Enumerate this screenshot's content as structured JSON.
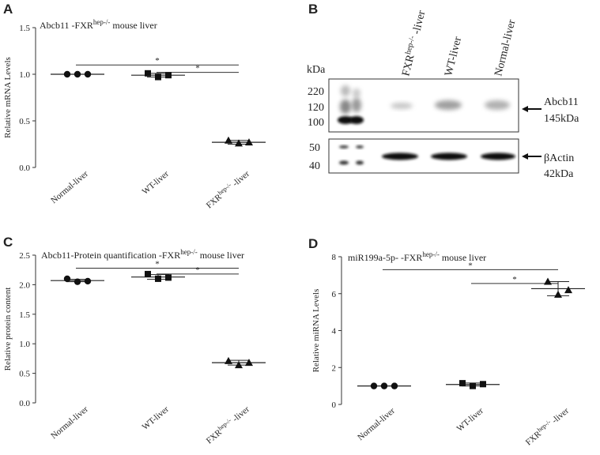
{
  "chart_data": [
    {
      "panel": "A",
      "type": "scatter",
      "title": "Abcb11 -FXR<sup>hep-/-</sup> mouse liver",
      "ylabel": "Relative mRNA Levels",
      "ylim": [
        0,
        1.5
      ],
      "yticks": [
        "0.0",
        "0.5",
        "1.0",
        "1.5"
      ],
      "categories": [
        "Normal-liver",
        "WT-liver",
        "FXR<sup>hep-/-</sup> -liver"
      ],
      "markers": [
        "circle",
        "square",
        "triangle"
      ],
      "values": [
        [
          1.0,
          1.0,
          1.0
        ],
        [
          1.01,
          0.97,
          0.99
        ],
        [
          0.29,
          0.26,
          0.27
        ]
      ],
      "means": [
        1.0,
        0.99,
        0.27
      ],
      "error": [
        0,
        0.02,
        0.02
      ],
      "significance": [
        {
          "from": 0,
          "to": 2,
          "y": 1.1,
          "label": "*"
        },
        {
          "from": 1,
          "to": 2,
          "y": 1.02,
          "label": "*"
        }
      ]
    },
    {
      "panel": "C",
      "type": "scatter",
      "title": "Abcb11-Protein quantification -FXR<sup>hep-/-</sup> mouse liver",
      "ylabel": "Relative protein content",
      "ylim": [
        0,
        2.5
      ],
      "yticks": [
        "0.0",
        "0.5",
        "1.0",
        "1.5",
        "2.0",
        "2.5"
      ],
      "categories": [
        "Normal-liver",
        "WT-liver",
        "FXR<sup>hep-/-</sup> -liver"
      ],
      "markers": [
        "circle",
        "square",
        "triangle"
      ],
      "values": [
        [
          2.1,
          2.05,
          2.06
        ],
        [
          2.18,
          2.1,
          2.12
        ],
        [
          0.71,
          0.64,
          0.68
        ]
      ],
      "means": [
        2.07,
        2.13,
        0.68
      ],
      "error": [
        0.02,
        0.04,
        0.04
      ],
      "significance": [
        {
          "from": 0,
          "to": 2,
          "y": 2.28,
          "label": "*"
        },
        {
          "from": 1,
          "to": 2,
          "y": 2.18,
          "label": "*"
        }
      ]
    },
    {
      "panel": "D",
      "type": "scatter",
      "title": "miR199a-5p- -FXR<sup>hep-/-</sup> mouse liver",
      "ylabel": "Relative miRNA Levels",
      "ylim": [
        0,
        8
      ],
      "yticks": [
        "0",
        "2",
        "4",
        "6",
        "8"
      ],
      "categories": [
        "Normal-liver",
        "WT-liver",
        "FXR<sup>hep-/-</sup> -liver"
      ],
      "markers": [
        "circle",
        "square",
        "triangle"
      ],
      "values": [
        [
          1.0,
          1.0,
          1.0
        ],
        [
          1.15,
          1.0,
          1.1
        ],
        [
          6.65,
          5.95,
          6.2
        ]
      ],
      "means": [
        1.0,
        1.08,
        6.27
      ],
      "error": [
        0,
        0.08,
        0.38
      ],
      "significance": [
        {
          "from": 0,
          "to": 2,
          "y": 7.3,
          "label": "*"
        },
        {
          "from": 1,
          "to": 2,
          "y": 6.55,
          "label": "*"
        }
      ]
    }
  ],
  "panels": {
    "A": {
      "letter": "A"
    },
    "B": {
      "letter": "B"
    },
    "C": {
      "letter": "C"
    },
    "D": {
      "letter": "D"
    }
  },
  "blot": {
    "kda_unit": "kDa",
    "lanes": [
      "FXR<sup>hep-/-</sup> -liver",
      "WT-liver",
      "Normal-liver"
    ],
    "markers_top": [
      "220",
      "120",
      "100"
    ],
    "markers_bottom": [
      "50",
      "40"
    ],
    "protein1": {
      "name": "Abcb11",
      "size": "145kDa"
    },
    "protein2": {
      "name": "βActin",
      "size": "42kDa"
    }
  }
}
